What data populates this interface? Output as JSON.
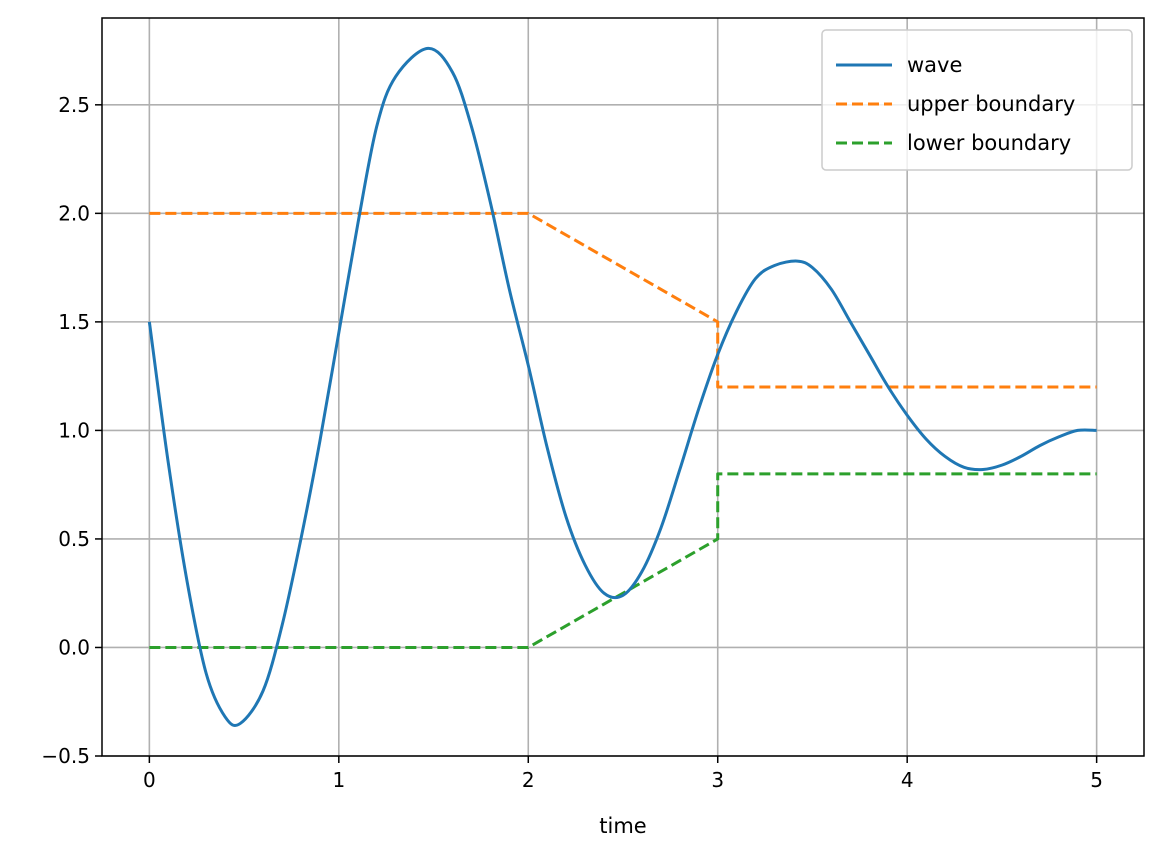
{
  "chart_data": {
    "type": "line",
    "xlabel": "time",
    "ylabel": "",
    "xlim": [
      -0.25,
      5.25
    ],
    "ylim": [
      -0.5,
      2.9
    ],
    "xticks": [
      0,
      1,
      2,
      3,
      4,
      5
    ],
    "xtick_labels": [
      "0",
      "1",
      "2",
      "3",
      "4",
      "5"
    ],
    "yticks": [
      -0.5,
      0.0,
      0.5,
      1.0,
      1.5,
      2.0,
      2.5
    ],
    "ytick_labels": [
      "−0.5",
      "0.0",
      "0.5",
      "1.0",
      "1.5",
      "2.0",
      "2.5"
    ],
    "grid": true,
    "legend_position": "top-right",
    "series": [
      {
        "name": "wave",
        "style": "solid",
        "color": "#1f77b4",
        "x": [
          0,
          0.1,
          0.2,
          0.3,
          0.4,
          0.48,
          0.6,
          0.7,
          0.8,
          0.9,
          1.0,
          1.1,
          1.2,
          1.3,
          1.47,
          1.6,
          1.7,
          1.8,
          1.9,
          2.0,
          2.1,
          2.2,
          2.3,
          2.4,
          2.5,
          2.6,
          2.7,
          2.8,
          2.9,
          3.0,
          3.1,
          3.2,
          3.3,
          3.42,
          3.5,
          3.6,
          3.7,
          3.8,
          3.9,
          4.0,
          4.1,
          4.2,
          4.3,
          4.4,
          4.5,
          4.6,
          4.7,
          4.8,
          4.9,
          5.0
        ],
        "y": [
          1.5,
          0.85,
          0.3,
          -0.12,
          -0.32,
          -0.35,
          -0.2,
          0.1,
          0.5,
          0.95,
          1.45,
          1.95,
          2.4,
          2.63,
          2.76,
          2.65,
          2.4,
          2.05,
          1.65,
          1.3,
          0.92,
          0.6,
          0.38,
          0.25,
          0.24,
          0.35,
          0.55,
          0.82,
          1.1,
          1.35,
          1.55,
          1.7,
          1.76,
          1.78,
          1.75,
          1.65,
          1.5,
          1.35,
          1.2,
          1.07,
          0.96,
          0.88,
          0.83,
          0.82,
          0.84,
          0.88,
          0.93,
          0.97,
          1.0,
          1.0
        ]
      },
      {
        "name": "upper boundary",
        "style": "dashed",
        "color": "#ff7f0e",
        "x": [
          0,
          2,
          3,
          3,
          5
        ],
        "y": [
          2.0,
          2.0,
          1.5,
          1.2,
          1.2
        ]
      },
      {
        "name": "lower boundary",
        "style": "dashed",
        "color": "#2ca02c",
        "x": [
          0,
          2,
          3,
          3,
          5
        ],
        "y": [
          0.0,
          0.0,
          0.5,
          0.8,
          0.8
        ]
      }
    ]
  }
}
